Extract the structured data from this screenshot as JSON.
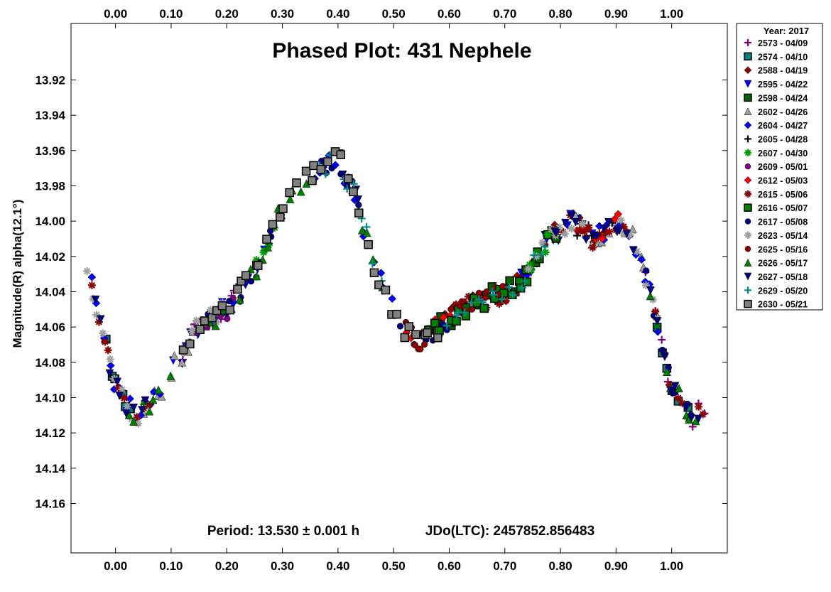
{
  "chart_data": {
    "type": "scatter",
    "title": "Phased Plot: 431 Nephele",
    "ylabel": "Magnitude(R) alpha(12.1°)",
    "xlabel": "",
    "xlim": [
      -0.08,
      1.1
    ],
    "ylim": [
      14.188,
      13.888
    ],
    "y_inverted": true,
    "grid": false,
    "x_ticks": [
      0.0,
      0.1,
      0.2,
      0.3,
      0.4,
      0.5,
      0.6,
      0.7,
      0.8,
      0.9,
      1.0
    ],
    "x_tick_labels": [
      "0.00",
      "0.10",
      "0.20",
      "0.30",
      "0.40",
      "0.50",
      "0.60",
      "0.70",
      "0.80",
      "0.90",
      "1.00"
    ],
    "y_ticks": [
      13.92,
      13.94,
      13.96,
      13.98,
      14.0,
      14.02,
      14.04,
      14.06,
      14.08,
      14.1,
      14.12,
      14.14,
      14.16
    ],
    "y_tick_labels": [
      "13.92",
      "13.94",
      "13.96",
      "13.98",
      "14.00",
      "14.02",
      "14.04",
      "14.06",
      "14.08",
      "14.10",
      "14.12",
      "14.14",
      "14.16"
    ],
    "period_text": "Period: 13.530 ± 0.001 h",
    "epoch_text": "JDo(LTC): 2457852.856483",
    "legend_title": "Year: 2017",
    "legend_placement": "outside-right-top",
    "curve_phase": [
      0.0,
      0.04,
      0.07,
      0.1,
      0.15,
      0.2,
      0.25,
      0.3,
      0.35,
      0.4,
      0.43,
      0.47,
      0.5,
      0.54,
      0.58,
      0.62,
      0.66,
      0.7,
      0.74,
      0.78,
      0.82,
      0.86,
      0.9,
      0.93,
      0.96,
      1.0
    ],
    "curve_mag": [
      14.095,
      14.112,
      14.1,
      14.085,
      14.06,
      14.05,
      14.03,
      13.99,
      13.975,
      13.965,
      13.985,
      14.03,
      14.05,
      14.07,
      14.06,
      14.05,
      14.045,
      14.04,
      14.03,
      14.01,
      14.0,
      14.01,
      14.0,
      14.01,
      14.04,
      14.095
    ],
    "series": [
      {
        "name": "2573 - 04/09",
        "marker": "plus",
        "color": "#800080",
        "phase_ranges": [
          [
            0.12,
            0.22
          ],
          [
            0.95,
            1.06
          ]
        ]
      },
      {
        "name": "2574 - 04/10",
        "marker": "square",
        "color": "#008080",
        "phase_ranges": [
          [
            -0.02,
            0.03
          ],
          [
            0.97,
            1.03
          ]
        ]
      },
      {
        "name": "2588 - 04/19",
        "marker": "diamond",
        "color": "#8b0000",
        "phase_ranges": [
          [
            0.58,
            0.86
          ]
        ]
      },
      {
        "name": "2595 - 04/22",
        "marker": "triangle-down",
        "color": "#0000ff",
        "phase_ranges": [
          [
            0.1,
            0.28
          ],
          [
            0.72,
            0.86
          ]
        ]
      },
      {
        "name": "2598 - 04/24",
        "marker": "square",
        "color": "#006400",
        "phase_ranges": [
          [
            0.56,
            0.8
          ]
        ]
      },
      {
        "name": "2602 - 04/26",
        "marker": "triangle",
        "color": "#a0a0a0",
        "phase_ranges": [
          [
            0.05,
            0.2
          ],
          [
            0.82,
            0.96
          ]
        ]
      },
      {
        "name": "2604 - 04/27",
        "marker": "diamond",
        "color": "#0000ff",
        "phase_ranges": [
          [
            -0.05,
            0.09
          ],
          [
            0.35,
            0.5
          ],
          [
            0.86,
            0.98
          ]
        ]
      },
      {
        "name": "2605 - 04/28",
        "marker": "plus",
        "color": "#000000",
        "phase_ranges": [
          [
            0.82,
            0.9
          ]
        ]
      },
      {
        "name": "2607 - 04/30",
        "marker": "asterisk",
        "color": "#00a000",
        "phase_ranges": [
          [
            0.25,
            0.3
          ],
          [
            0.74,
            0.78
          ]
        ]
      },
      {
        "name": "2609 - 05/01",
        "marker": "circle",
        "color": "#800080",
        "phase_ranges": [
          [
            0.12,
            0.22
          ]
        ]
      },
      {
        "name": "2612 - 05/03",
        "marker": "diamond",
        "color": "#ff0000",
        "phase_ranges": [
          [
            0.52,
            0.62
          ],
          [
            0.82,
            0.92
          ]
        ]
      },
      {
        "name": "2615 - 05/06",
        "marker": "asterisk",
        "color": "#8b0000",
        "phase_ranges": [
          [
            -0.05,
            0.07
          ],
          [
            0.58,
            0.72
          ],
          [
            0.8,
            0.92
          ],
          [
            0.96,
            1.06
          ]
        ]
      },
      {
        "name": "2616 - 05/07",
        "marker": "square",
        "color": "#008000",
        "phase_ranges": [
          [
            0.56,
            0.76
          ]
        ]
      },
      {
        "name": "2617 - 05/08",
        "marker": "circle",
        "color": "#000080",
        "phase_ranges": [
          [
            0.15,
            0.3
          ],
          [
            0.36,
            0.44
          ],
          [
            0.5,
            0.6
          ],
          [
            0.95,
            1.04
          ]
        ]
      },
      {
        "name": "2623 - 05/14",
        "marker": "asterisk",
        "color": "#a0a0a0",
        "phase_ranges": [
          [
            -0.06,
            0.05
          ],
          [
            0.12,
            0.2
          ],
          [
            0.74,
            0.84
          ],
          [
            0.9,
            0.98
          ]
        ]
      },
      {
        "name": "2625 - 05/16",
        "marker": "circle",
        "color": "#8b0000",
        "phase_ranges": [
          [
            0.52,
            0.56
          ],
          [
            0.6,
            0.7
          ]
        ]
      },
      {
        "name": "2626 - 05/17",
        "marker": "triangle",
        "color": "#008000",
        "phase_ranges": [
          [
            0.02,
            0.1
          ],
          [
            0.16,
            0.36
          ],
          [
            0.42,
            0.48
          ],
          [
            0.96,
            1.05
          ]
        ]
      },
      {
        "name": "2627 - 05/18",
        "marker": "triangle-down",
        "color": "#000080",
        "phase_ranges": [
          [
            -0.04,
            0.06
          ],
          [
            0.4,
            0.44
          ],
          [
            0.78,
            0.94
          ],
          [
            0.96,
            1.05
          ]
        ]
      },
      {
        "name": "2629 - 05/20",
        "marker": "plus",
        "color": "#008b8b",
        "phase_ranges": [
          [
            0.36,
            0.48
          ],
          [
            0.58,
            0.78
          ]
        ]
      },
      {
        "name": "2630 - 05/21",
        "marker": "square",
        "color": "#808080",
        "phase_ranges": [
          [
            0.12,
            0.5
          ],
          [
            0.5,
            0.58
          ]
        ]
      }
    ]
  }
}
